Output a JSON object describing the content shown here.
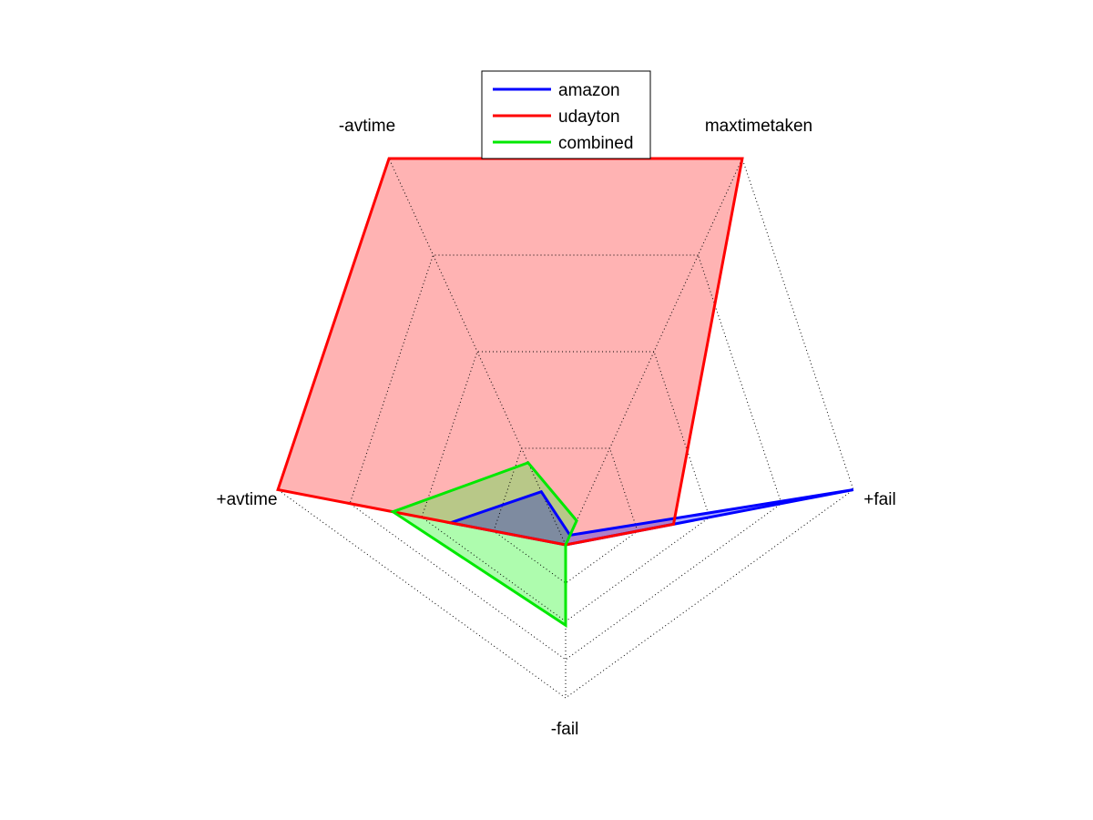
{
  "chart_data": {
    "type": "radar",
    "axes": [
      "maxtimetaken",
      "-avtime",
      "+avtime",
      "-fail",
      "+fail"
    ],
    "rmax": 4,
    "rings": 4,
    "grid": true,
    "legend_position": "top-center",
    "series": [
      {
        "name": "amazon",
        "color": "#0000ff",
        "fill": "#b1b1ff",
        "values": [
          0.1,
          0.55,
          1.6,
          0,
          4.0
        ]
      },
      {
        "name": "udayton",
        "color": "#ff0000",
        "fill": "#ffb3b3",
        "values": [
          4.0,
          4.0,
          4.0,
          0,
          1.5
        ]
      },
      {
        "name": "combined",
        "color": "#00e800",
        "fill": "#aefcae",
        "values": [
          0.25,
          0.85,
          2.4,
          2.1,
          0
        ]
      }
    ],
    "overlap_colors": {
      "amazon+udayton": "#b080c8",
      "amazon+udayton+combined": "#7e8ba0",
      "udayton+combined": "#b8c888"
    }
  }
}
